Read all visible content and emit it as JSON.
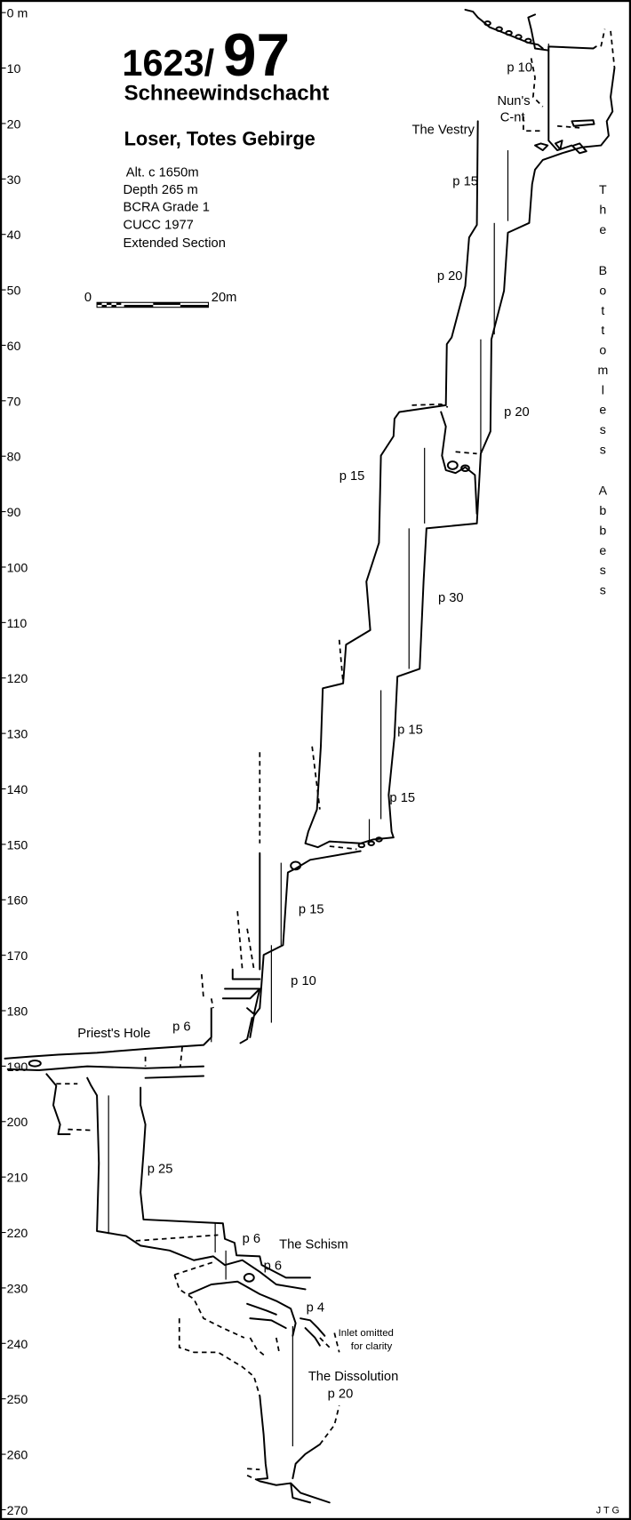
{
  "title": {
    "number_prefix": "1623/",
    "number_main": "97",
    "name": "Schneewindschacht",
    "location": "Loser, Totes Gebirge"
  },
  "info": [
    "Alt. c 1650m",
    "Depth 265 m",
    "BCRA Grade 1",
    "CUCC 1977",
    "Extended Section"
  ],
  "scale_bar": {
    "start": "0",
    "end": "20m"
  },
  "depth_axis": {
    "unit_label": "0 m",
    "ticks": [
      0,
      10,
      20,
      30,
      40,
      50,
      60,
      70,
      80,
      90,
      100,
      110,
      120,
      130,
      140,
      150,
      160,
      170,
      180,
      190,
      200,
      210,
      220,
      230,
      240,
      250,
      260,
      270
    ]
  },
  "labels": {
    "p10_top": "p 10",
    "nuns": "Nun's",
    "cnt": "C-nt",
    "vestry": "The Vestry",
    "p15_a": "p 15",
    "p20_a": "p 20",
    "p20_b": "p 20",
    "p15_b": "p 15",
    "p30": "p 30",
    "p15_c": "p 15",
    "p15_d": "p 15",
    "p15_e": "p 15",
    "p10_b": "p 10",
    "p6_a": "p 6",
    "priests_hole": "Priest's Hole",
    "p25": "p 25",
    "p6_b": "p 6",
    "schism": "The Schism",
    "p6_c": "p 6",
    "p4": "p 4",
    "inlet_1": "Inlet omitted",
    "inlet_2": "for clarity",
    "dissolution": "The Dissolution",
    "p20_c": "p 20"
  },
  "side_label": "The Bottomless Abbess",
  "author": "J T G"
}
